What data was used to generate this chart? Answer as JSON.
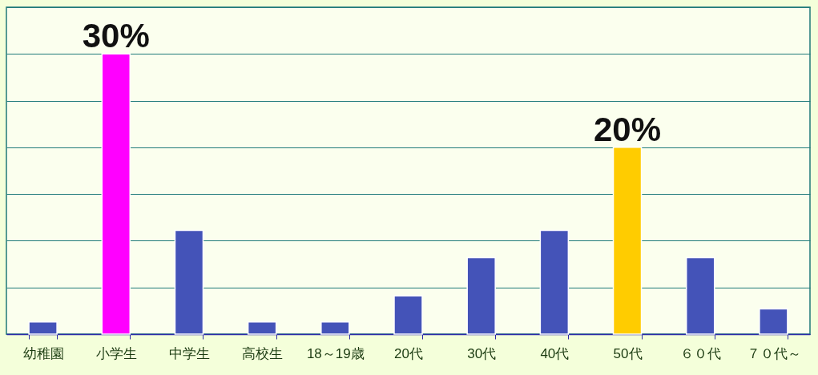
{
  "chart_data": {
    "type": "bar",
    "categories": [
      "幼稚園",
      "小学生",
      "中学生",
      "高校生",
      "18～19歳",
      "20代",
      "30代",
      "40代",
      "50代",
      "６０代",
      "７０代～"
    ],
    "values": [
      1.3,
      30,
      11.1,
      1.3,
      1.3,
      4.1,
      8.2,
      11.1,
      20,
      8.2,
      2.7
    ],
    "colors": [
      "#4453b8",
      "#ff00ff",
      "#4453b8",
      "#4453b8",
      "#4453b8",
      "#4453b8",
      "#4453b8",
      "#4453b8",
      "#ffcc00",
      "#4453b8",
      "#4453b8"
    ],
    "value_labels": [
      null,
      "30%",
      null,
      null,
      null,
      null,
      null,
      null,
      "20%",
      null,
      null
    ],
    "ylim": [
      0,
      35
    ],
    "yticks": [
      {
        "value": 0,
        "label": null
      },
      {
        "value": 5,
        "label": null
      },
      {
        "value": 10,
        "label": null
      },
      {
        "value": 15,
        "label": null
      },
      {
        "value": 20,
        "label": null
      },
      {
        "value": 25,
        "label": null
      },
      {
        "value": 30,
        "label": null
      },
      {
        "value": 35,
        "label": null
      }
    ],
    "grid": "y",
    "tick_labels": "x"
  }
}
